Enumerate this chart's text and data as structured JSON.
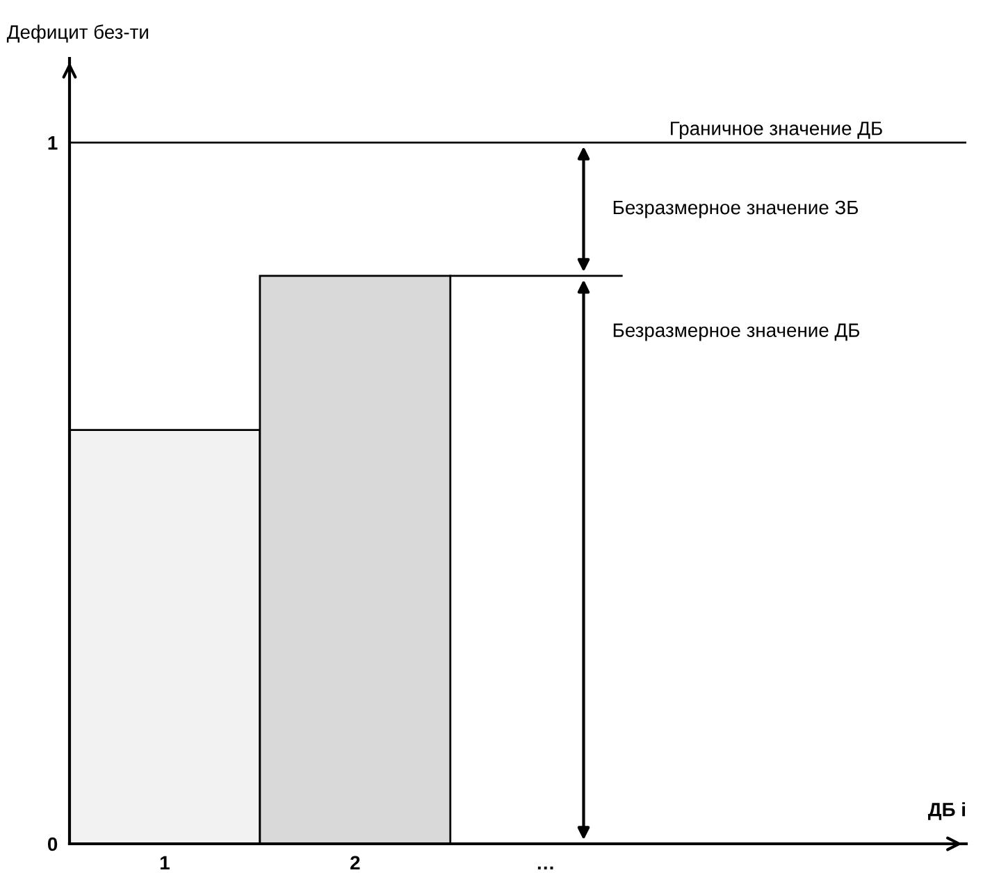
{
  "chart_data": {
    "type": "bar",
    "ylabel": "Дефицит без-ти",
    "categories": [
      "1",
      "2",
      "…"
    ],
    "values": [
      0.59,
      0.81,
      null
    ],
    "colors": [
      "#f2f2f2",
      "#d9d9d9",
      "#d9d9d9"
    ],
    "ylim": [
      0,
      1.12
    ],
    "yticks": [
      0,
      1
    ],
    "grid": false,
    "ref_lines": [
      {
        "axis": "y",
        "value": 1,
        "label": "Граничное значение ДБ",
        "color": "#000000"
      },
      {
        "axis": "y",
        "value": 0.81,
        "color": "#000000"
      }
    ],
    "annotations": [
      "Безразмерное значение ЗБ",
      "Безразмерное значение ДБ",
      "ДБ i"
    ]
  }
}
